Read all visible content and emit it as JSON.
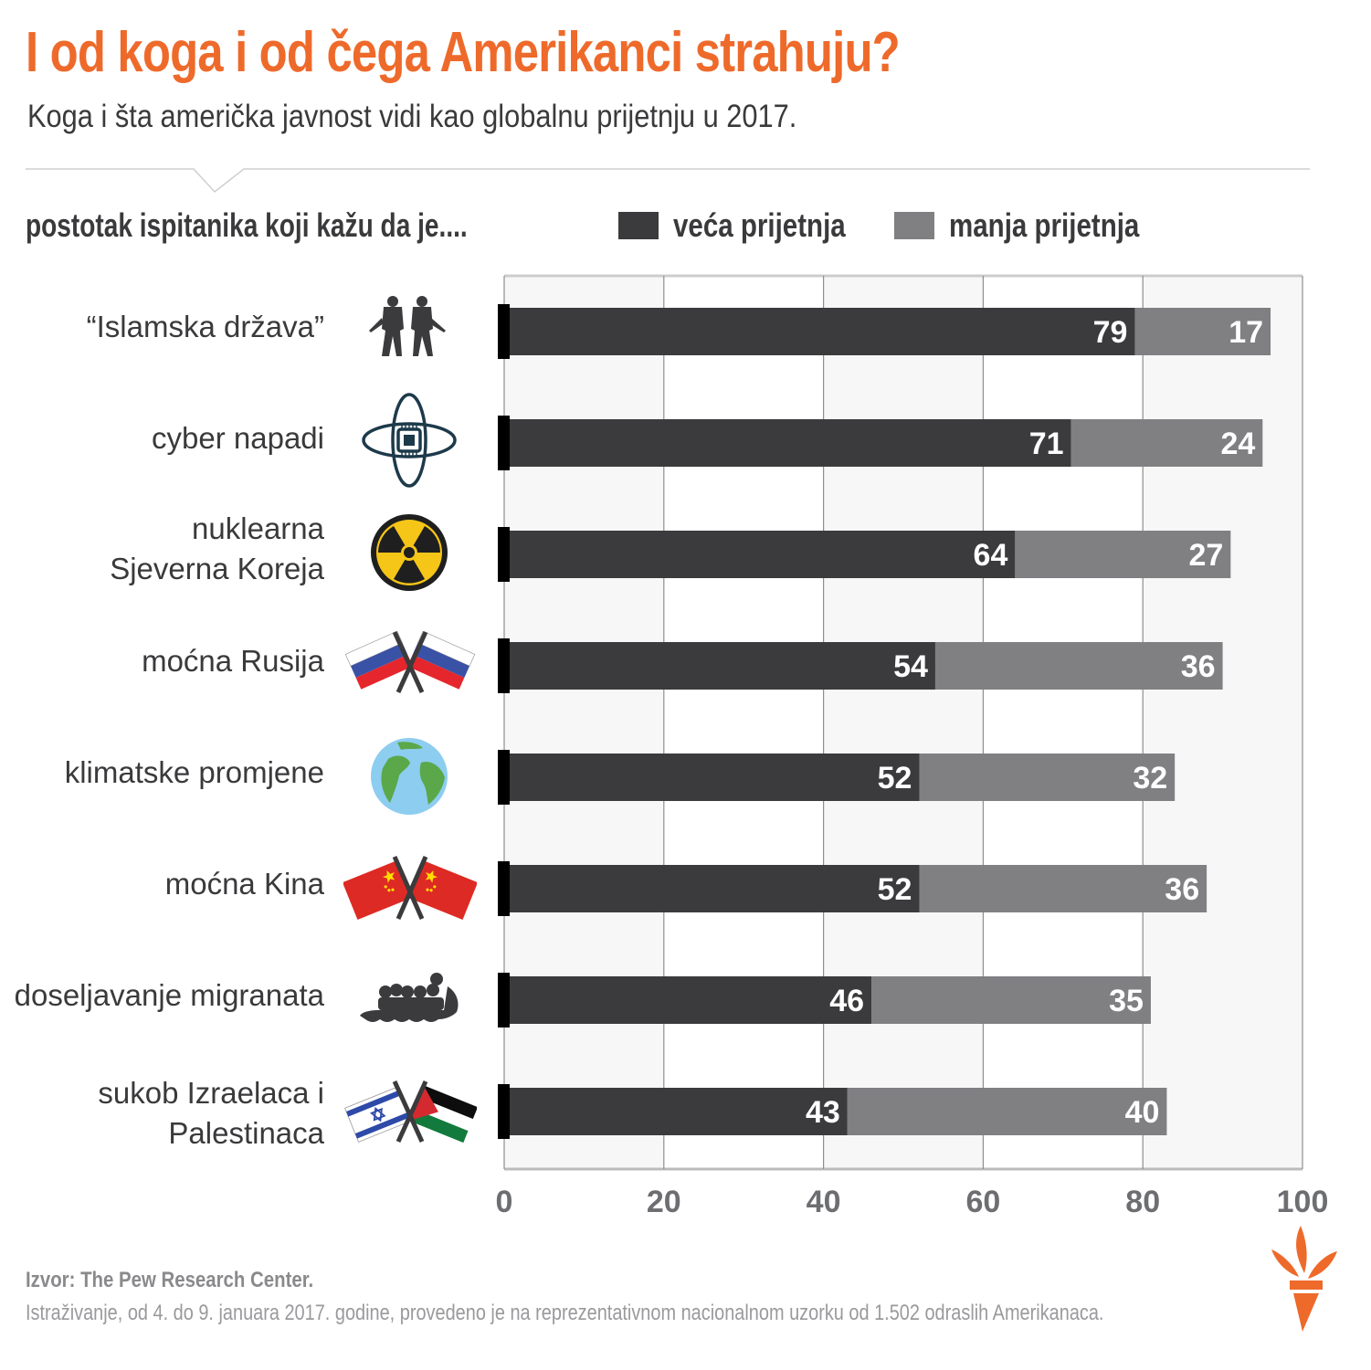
{
  "header": {
    "title": "I od koga i od čega Amerikanci strahuju?",
    "subtitle": "Koga i šta američka javnost vidi kao globalnu prijetnju u 2017."
  },
  "measure_label": "postotak ispitanika koji kažu da je....",
  "colors": {
    "accent": "#ee6a2b",
    "major": "#3b3b3d",
    "minor": "#808083",
    "plot_band": "#f7f7f7",
    "grid": "#8e8e90",
    "text": "#3a3a3c"
  },
  "chart_data": {
    "type": "bar",
    "orientation": "horizontal",
    "stacked": true,
    "title": "I od koga i od čega Amerikanci strahuju?",
    "subtitle": "Koga i šta američka javnost vidi kao globalnu prijetnju u 2017.",
    "xlabel": "",
    "ylabel": "postotak ispitanika koji kažu da je....",
    "xlim": [
      0,
      100
    ],
    "ticks": [
      0,
      20,
      40,
      60,
      80,
      100
    ],
    "tick_labels": [
      "0",
      "20",
      "40",
      "60",
      "80",
      "100"
    ],
    "grid": true,
    "legend_position": "top",
    "categories": [
      {
        "label": [
          "“Islamska država”"
        ],
        "icon": "soldiers-icon"
      },
      {
        "label": [
          "cyber napadi"
        ],
        "icon": "cyber-chip-icon"
      },
      {
        "label": [
          "nuklearna",
          "Sjeverna Koreja"
        ],
        "icon": "radiation-icon"
      },
      {
        "label": [
          "moćna Rusija"
        ],
        "icon": "russia-flags-icon"
      },
      {
        "label": [
          "klimatske promjene"
        ],
        "icon": "globe-icon"
      },
      {
        "label": [
          "moćna Kina"
        ],
        "icon": "china-flags-icon"
      },
      {
        "label": [
          "doseljavanje migranata"
        ],
        "icon": "migrant-boat-icon"
      },
      {
        "label": [
          "sukob Izraelaca i",
          "Palestinaca"
        ],
        "icon": "israel-palestine-flags-icon"
      }
    ],
    "series": [
      {
        "name": "veća prijetnja",
        "color": "#3b3b3d",
        "values": [
          79,
          71,
          64,
          54,
          52,
          52,
          46,
          43
        ]
      },
      {
        "name": "manja prijetnja",
        "color": "#808083",
        "values": [
          17,
          24,
          27,
          36,
          32,
          36,
          35,
          40
        ]
      }
    ]
  },
  "footer": {
    "source": "Izvor: The Pew Research Center.",
    "note": "Istraživanje, od 4. do 9. januara 2017. godine, provedeno je na reprezentativnom nacionalnom uzorku od 1.502 odraslih Amerikanaca."
  },
  "logo": "rferl-torch-logo"
}
